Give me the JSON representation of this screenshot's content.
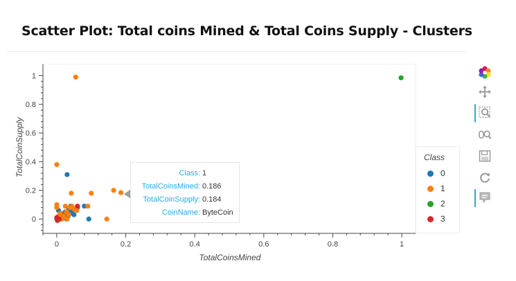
{
  "chart_data": {
    "type": "scatter",
    "title": "Scatter Plot: Total coins Mined & Total Coins Supply - Clusters",
    "xlabel": "TotalCoinsMined",
    "ylabel": "TotalCoinSupply",
    "xlim": [
      -0.04,
      1.04
    ],
    "ylim": [
      -0.1,
      1.08
    ],
    "xticks": [
      "0",
      "0.2",
      "0.4",
      "0.6",
      "0.8",
      "1"
    ],
    "yticks": [
      "0",
      "0.2",
      "0.4",
      "0.6",
      "0.8",
      "1"
    ],
    "grid": false,
    "legend": {
      "title": "Class",
      "placement": "right",
      "entries": [
        {
          "label": "0",
          "color": "#1f77b4"
        },
        {
          "label": "1",
          "color": "#ff7f0e"
        },
        {
          "label": "2",
          "color": "#2ca02c"
        },
        {
          "label": "3",
          "color": "#d62728"
        }
      ]
    },
    "series": [
      {
        "name": "0",
        "color": "#1f77b4",
        "points": [
          [
            0.0,
            0.0
          ],
          [
            0.003,
            0.01
          ],
          [
            0.005,
            0.06
          ],
          [
            0.01,
            0.03
          ],
          [
            0.015,
            0.0
          ],
          [
            0.02,
            0.02
          ],
          [
            0.025,
            0.05
          ],
          [
            0.03,
            0.31
          ],
          [
            0.035,
            0.07
          ],
          [
            0.04,
            0.09
          ],
          [
            0.045,
            0.04
          ],
          [
            0.05,
            0.03
          ],
          [
            0.06,
            0.08
          ],
          [
            0.08,
            0.09
          ],
          [
            0.093,
            0.0
          ],
          [
            0.012,
            0.04
          ],
          [
            0.018,
            0.01
          ],
          [
            0.028,
            0.0
          ],
          [
            0.033,
            0.02
          ],
          [
            0.008,
            0.02
          ],
          [
            0.04,
            0.06
          ],
          [
            0.022,
            0.03
          ]
        ]
      },
      {
        "name": "1",
        "color": "#ff7f0e",
        "points": [
          [
            0.055,
            0.99
          ],
          [
            0.0,
            0.38
          ],
          [
            0.0,
            0.1
          ],
          [
            0.0,
            0.08
          ],
          [
            0.005,
            0.02
          ],
          [
            0.01,
            0.04
          ],
          [
            0.015,
            0.0
          ],
          [
            0.02,
            0.02
          ],
          [
            0.025,
            0.09
          ],
          [
            0.03,
            0.0
          ],
          [
            0.038,
            0.08
          ],
          [
            0.042,
            0.18
          ],
          [
            0.05,
            0.07
          ],
          [
            0.058,
            0.06
          ],
          [
            0.09,
            0.09
          ],
          [
            0.1,
            0.18
          ],
          [
            0.145,
            0.0
          ],
          [
            0.165,
            0.2
          ],
          [
            0.186,
            0.184
          ],
          [
            0.035,
            0.03
          ],
          [
            0.012,
            0.0
          ],
          [
            0.028,
            0.05
          ],
          [
            0.044,
            0.09
          ]
        ]
      },
      {
        "name": "2",
        "color": "#2ca02c",
        "points": [
          [
            0.998,
            0.985
          ]
        ]
      },
      {
        "name": "3",
        "color": "#d62728",
        "points": [
          [
            0.0,
            0.01
          ],
          [
            0.002,
            -0.01
          ],
          [
            0.06,
            0.09
          ],
          [
            0.007,
            0.0
          ]
        ]
      }
    ]
  },
  "tooltip": {
    "rows": [
      {
        "key": "Class:",
        "value": "1"
      },
      {
        "key": "TotalCoinsMined:",
        "value": "0.186"
      },
      {
        "key": "TotalCoinSupply:",
        "value": "0.184"
      },
      {
        "key": "CoinName:",
        "value": "ByteCoin"
      }
    ]
  },
  "toolbar": {
    "tools": [
      {
        "icon": "bokeh-logo-icon",
        "active": false
      },
      {
        "icon": "pan-icon",
        "active": false
      },
      {
        "icon": "box-zoom-icon",
        "active": true
      },
      {
        "icon": "wheel-zoom-icon",
        "active": false
      },
      {
        "icon": "save-icon",
        "active": false
      },
      {
        "icon": "reset-icon",
        "active": false
      },
      {
        "icon": "hover-icon",
        "active": true
      }
    ]
  }
}
